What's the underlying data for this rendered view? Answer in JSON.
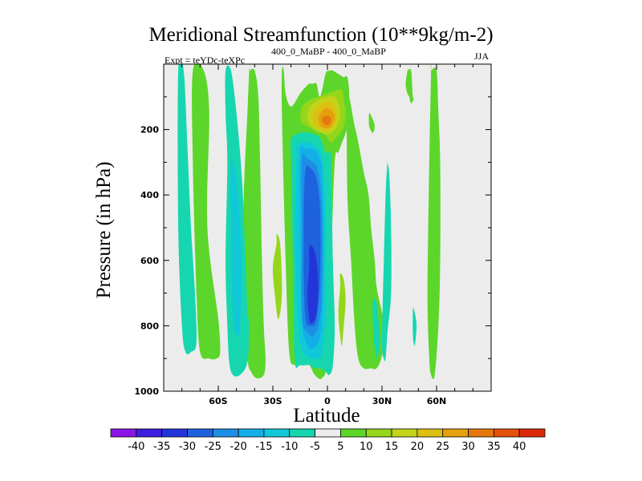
{
  "chart_data": {
    "type": "contour",
    "title": "Meridional Streamfunction (10**9kg/m-2)",
    "subtitle_left": "Expt = teYDc-teXPc",
    "subtitle_center": "400_0_MaBP - 400_0_MaBP",
    "subtitle_right": "JJA",
    "xlabel": "Latitude",
    "ylabel": "Pressure (in hPa)",
    "xlim": [
      -90,
      90
    ],
    "ylim": [
      1000,
      0
    ],
    "xticks": [
      {
        "value": -60,
        "label": "60S"
      },
      {
        "value": -30,
        "label": "30S"
      },
      {
        "value": 0,
        "label": "0"
      },
      {
        "value": 30,
        "label": "30N"
      },
      {
        "value": 60,
        "label": "60N"
      }
    ],
    "yticks": [
      {
        "value": 200,
        "label": "200"
      },
      {
        "value": 400,
        "label": "400"
      },
      {
        "value": 600,
        "label": "600"
      },
      {
        "value": 800,
        "label": "800"
      },
      {
        "value": 1000,
        "label": "1000"
      }
    ],
    "colorbar": {
      "labels": [
        "-40",
        "-35",
        "-30",
        "-25",
        "-20",
        "-15",
        "-10",
        "-5",
        "5",
        "10",
        "15",
        "20",
        "25",
        "30",
        "35",
        "40"
      ],
      "colors": [
        "#8a16e6",
        "#3d1ee0",
        "#2335d8",
        "#1e62dd",
        "#1e8ee4",
        "#13aee8",
        "#10c8d8",
        "#16d6b0",
        "#ececec",
        "#5cd62a",
        "#95d61a",
        "#c3d31a",
        "#dcc012",
        "#e4a00e",
        "#e4780c",
        "#e24f08",
        "#dc2808"
      ]
    },
    "contour_levels": [
      {
        "value": 10,
        "color": "#5cd62a",
        "regions": [
          {
            "lat": [
              -74,
              -68,
              -65,
              -66,
              -60,
              -59,
              -61,
              -65,
              -70,
              -72,
              -74
            ],
            "p": [
              20,
              20,
              150,
              500,
              780,
              880,
              900,
              900,
              880,
              700,
              300
            ]
          },
          {
            "lat": [
              -43,
              -40,
              -38,
              -37,
              -36,
              -35,
              -34,
              -35,
              -39,
              -42,
              -44,
              -47,
              -46,
              -44,
              -43
            ],
            "p": [
              20,
              20,
              100,
              300,
              600,
              800,
              900,
              950,
              960,
              940,
              900,
              700,
              400,
              150,
              20
            ]
          },
          {
            "lat": [
              -25,
              -24,
              -23,
              -20,
              -15,
              -12,
              -10,
              -8,
              -6,
              -4,
              -1,
              1,
              3,
              6,
              9,
              11,
              12,
              11,
              8,
              6,
              4,
              2,
              0,
              -3,
              -7,
              -10,
              -14,
              -18,
              -21,
              -23,
              -25
            ],
            "p": [
              20,
              20,
              90,
              130,
              90,
              70,
              60,
              60,
              60,
              100,
              30,
              20,
              20,
              30,
              40,
              40,
              100,
              190,
              240,
              270,
              300,
              600,
              900,
              960,
              950,
              920,
              920,
              920,
              880,
              600,
              150
            ]
          },
          {
            "lat": [
              11,
              15,
              17,
              20,
              22,
              23,
              24,
              26,
              27,
              30,
              31,
              30,
              27,
              24,
              20,
              17,
              15,
              13,
              11
            ],
            "p": [
              100,
              190,
              240,
              330,
              380,
              420,
              500,
              600,
              680,
              760,
              800,
              890,
              930,
              930,
              930,
              900,
              800,
              600,
              400
            ]
          },
          {
            "lat": [
              23,
              25,
              26,
              25,
              23
            ],
            "p": [
              150,
              170,
              190,
              210,
              190
            ]
          },
          {
            "lat": [
              44,
              46,
              47,
              48,
              46,
              45,
              44,
              43,
              44
            ],
            "p": [
              20,
              20,
              100,
              100,
              120,
              100,
              90,
              60,
              20
            ]
          },
          {
            "lat": [
              57,
              60,
              61,
              62,
              62,
              61,
              59,
              57,
              56,
              55,
              56,
              57
            ],
            "p": [
              20,
              20,
              150,
              300,
              600,
              800,
              950,
              950,
              900,
              700,
              300,
              20
            ]
          }
        ]
      },
      {
        "value": -5,
        "color": "#16d6b0",
        "regions": [
          {
            "lat": [
              -82,
              -79,
              -77,
              -75,
              -73,
              -72,
              -75,
              -78,
              -80,
              -82
            ],
            "p": [
              20,
              20,
              250,
              500,
              680,
              850,
              880,
              880,
              800,
              500
            ]
          },
          {
            "lat": [
              -56,
              -53,
              -50,
              -47,
              -45,
              -44,
              -43,
              -44,
              -48,
              -52,
              -54,
              -55,
              -56,
              -55,
              -56
            ],
            "p": [
              20,
              20,
              150,
              350,
              600,
              750,
              800,
              910,
              950,
              950,
              910,
              800,
              600,
              300,
              150
            ]
          },
          {
            "lat": [
              -20,
              -15,
              -10,
              -5,
              -3,
              -1,
              1,
              2,
              3,
              4,
              3,
              1,
              -1,
              -4,
              -7,
              -10,
              -15,
              -18,
              -19,
              -20
            ],
            "p": [
              230,
              210,
              210,
              220,
              240,
              270,
              270,
              300,
              600,
              800,
              920,
              950,
              940,
              930,
              930,
              920,
              920,
              900,
              600,
              300
            ]
          },
          {
            "lat": [
              33,
              34,
              35,
              35,
              33,
              32,
              31,
              30,
              31,
              32,
              33
            ],
            "p": [
              300,
              340,
              500,
              700,
              820,
              900,
              900,
              850,
              600,
              400,
              300
            ]
          },
          {
            "lat": [
              25,
              27,
              28,
              29,
              27,
              26,
              25
            ],
            "p": [
              720,
              730,
              780,
              850,
              900,
              870,
              800
            ]
          },
          {
            "lat": [
              47,
              48,
              49,
              48,
              47
            ],
            "p": [
              750,
              760,
              800,
              860,
              830
            ]
          }
        ]
      },
      {
        "value": -10,
        "color": "#10c8d8",
        "regions": [
          {
            "lat": [
              -53,
              -50,
              -48,
              -47,
              -48,
              -50,
              -52,
              -53
            ],
            "p": [
              300,
              350,
              500,
              650,
              800,
              830,
              760,
              500
            ]
          },
          {
            "lat": [
              -17,
              -14,
              -10,
              -7,
              -4,
              -2,
              -1,
              -1,
              -3,
              -5,
              -8,
              -12,
              -15,
              -17,
              -18,
              -17
            ],
            "p": [
              250,
              240,
              240,
              250,
              270,
              320,
              500,
              750,
              880,
              900,
              900,
              890,
              850,
              700,
              500,
              300
            ]
          }
        ]
      },
      {
        "value": -15,
        "color": "#13aee8",
        "regions": [
          {
            "lat": [
              -15,
              -12,
              -8,
              -5,
              -3,
              -2,
              -3,
              -5,
              -8,
              -11,
              -14,
              -15
            ],
            "p": [
              270,
              260,
              260,
              280,
              330,
              550,
              780,
              850,
              870,
              860,
              780,
              500
            ]
          }
        ]
      },
      {
        "value": -20,
        "color": "#1e8ee4",
        "regions": [
          {
            "lat": [
              -14,
              -11,
              -8,
              -5,
              -3,
              -3,
              -5,
              -8,
              -11,
              -14,
              -14
            ],
            "p": [
              290,
              290,
              300,
              330,
              450,
              700,
              800,
              830,
              820,
              770,
              500
            ]
          }
        ]
      },
      {
        "value": -25,
        "color": "#1e62dd",
        "regions": [
          {
            "lat": [
              -12,
              -9,
              -6,
              -4,
              -4,
              -6,
              -9,
              -12,
              -13,
              -13
            ],
            "p": [
              320,
              320,
              350,
              450,
              650,
              780,
              800,
              780,
              650,
              450
            ]
          }
        ]
      },
      {
        "value": -30,
        "color": "#2335d8",
        "regions": [
          {
            "lat": [
              -10,
              -8,
              -6,
              -5,
              -6,
              -8,
              -10,
              -11,
              -10
            ],
            "p": [
              560,
              560,
              600,
              680,
              760,
              790,
              780,
              700,
              620
            ]
          }
        ]
      },
      {
        "value": 15,
        "color": "#95d61a",
        "regions": [
          {
            "lat": [
              -28,
              -26,
              -25,
              -27,
              -29,
              -30,
              -28
            ],
            "p": [
              520,
              550,
              700,
              780,
              700,
              620,
              550
            ]
          },
          {
            "lat": [
              -14,
              -10,
              -5,
              0,
              5,
              8,
              9,
              10,
              9,
              7,
              4,
              2,
              -2,
              -5,
              -8,
              -11,
              -14,
              -15,
              -14
            ],
            "p": [
              130,
              110,
              100,
              90,
              80,
              80,
              110,
              150,
              190,
              210,
              230,
              240,
              210,
              210,
              200,
              190,
              180,
              160,
              130
            ]
          },
          {
            "lat": [
              7,
              9,
              10,
              9,
              8,
              7,
              6,
              7
            ],
            "p": [
              640,
              660,
              720,
              800,
              860,
              830,
              760,
              680
            ]
          }
        ]
      },
      {
        "value": 20,
        "color": "#c3d31a",
        "regions": [
          {
            "lat": [
              -10,
              -5,
              0,
              4,
              6,
              7,
              6,
              4,
              0,
              -3,
              -6,
              -9,
              -11,
              -11,
              -10
            ],
            "p": [
              130,
              110,
              100,
              100,
              120,
              150,
              180,
              200,
              215,
              210,
              200,
              190,
              170,
              150,
              130
            ]
          }
        ]
      },
      {
        "value": 25,
        "color": "#dcc012",
        "regions": [
          {
            "lat": [
              -7,
              -3,
              1,
              4,
              5,
              4,
              1,
              -3,
              -6,
              -8,
              -7
            ],
            "p": [
              140,
              120,
              115,
              130,
              160,
              185,
              200,
              200,
              190,
              170,
              140
            ]
          }
        ]
      },
      {
        "value": 30,
        "color": "#e4a00e",
        "regions": [
          {
            "lat": [
              -4,
              -1,
              2,
              4,
              3,
              1,
              -2,
              -4,
              -5,
              -4
            ],
            "p": [
              150,
              135,
              140,
              160,
              180,
              195,
              195,
              185,
              165,
              150
            ]
          }
        ]
      },
      {
        "value": 35,
        "color": "#e4780c",
        "regions": [
          {
            "lat": [
              -2,
              1,
              2,
              1,
              -1,
              -2,
              -3,
              -2
            ],
            "p": [
              160,
              158,
              172,
              184,
              186,
              180,
              170,
              160
            ]
          }
        ]
      }
    ]
  }
}
